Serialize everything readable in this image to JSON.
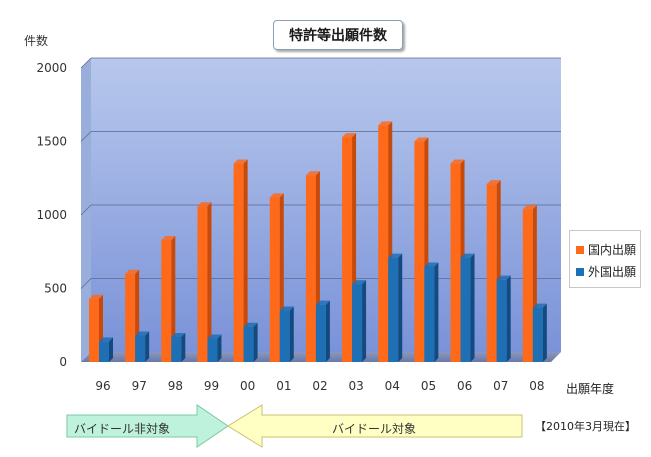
{
  "chart_data": {
    "type": "bar",
    "title": "特許等出願件数",
    "ylabel": "件数",
    "xlabel": "出願年度",
    "categories": [
      "96",
      "97",
      "98",
      "99",
      "00",
      "01",
      "02",
      "03",
      "04",
      "05",
      "06",
      "07",
      "08"
    ],
    "series": [
      {
        "name": "国内出願",
        "color": "#ff6a1a",
        "values": [
          430,
          600,
          830,
          1060,
          1350,
          1120,
          1270,
          1530,
          1610,
          1500,
          1350,
          1210,
          1040
        ]
      },
      {
        "name": "外国出願",
        "color": "#1f6fb5",
        "values": [
          140,
          180,
          170,
          160,
          240,
          350,
          390,
          530,
          710,
          650,
          710,
          560,
          370
        ]
      }
    ],
    "ylim": [
      0,
      2000
    ],
    "yticks": [
      "0",
      "500",
      "1000",
      "1500",
      "2000"
    ],
    "grid": true,
    "legend_position": "right"
  },
  "annotations": {
    "arrow_left": "バイドール非対象",
    "arrow_right": "バイドール対象",
    "note": "【2010年3月現在】"
  },
  "colors": {
    "plot_top": "#b8c8ec",
    "plot_bottom": "#7a92d8",
    "arrow_green": "#bff2dc",
    "arrow_yellow": "#ffffc4"
  }
}
